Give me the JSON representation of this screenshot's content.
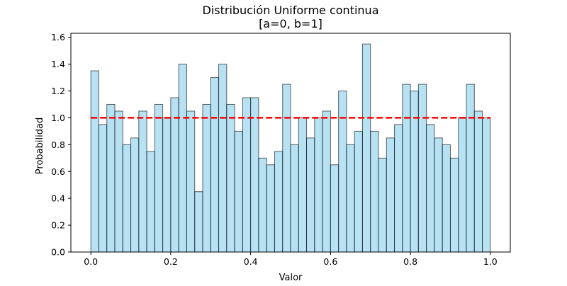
{
  "chart_data": {
    "type": "bar",
    "title": "Distribución Uniforme continua",
    "subtitle": "[a=0, b=1]",
    "xlabel": "Valor",
    "ylabel": "Probabilidad",
    "xlim": [
      -0.05,
      1.05
    ],
    "ylim": [
      0,
      1.63
    ],
    "xticks": [
      0.0,
      0.2,
      0.4,
      0.6,
      0.8,
      1.0
    ],
    "xtick_labels": [
      "0.0",
      "0.2",
      "0.4",
      "0.6",
      "0.8",
      "1.0"
    ],
    "yticks": [
      0.0,
      0.2,
      0.4,
      0.6,
      0.8,
      1.0,
      1.2,
      1.4,
      1.6
    ],
    "ytick_labels": [
      "0.0",
      "0.2",
      "0.4",
      "0.6",
      "0.8",
      "1.0",
      "1.2",
      "1.4",
      "1.6"
    ],
    "grid": false,
    "bin_edges": [
      0,
      0.02,
      0.04,
      0.06,
      0.08,
      0.1,
      0.12,
      0.14,
      0.16,
      0.18,
      0.2,
      0.22,
      0.24,
      0.26,
      0.28,
      0.3,
      0.32,
      0.34,
      0.36,
      0.38,
      0.4,
      0.42,
      0.44,
      0.46,
      0.48,
      0.5,
      0.52,
      0.54,
      0.56,
      0.58,
      0.6,
      0.62,
      0.64,
      0.66,
      0.68,
      0.7,
      0.72,
      0.74,
      0.76,
      0.78,
      0.8,
      0.82,
      0.84,
      0.86,
      0.88,
      0.9,
      0.92,
      0.94,
      0.96,
      0.98,
      1.0
    ],
    "values": [
      1.35,
      0.95,
      1.1,
      1.05,
      0.8,
      0.85,
      1.05,
      0.75,
      1.1,
      1.0,
      1.15,
      1.4,
      1.05,
      0.45,
      1.1,
      1.3,
      1.4,
      1.1,
      0.9,
      1.15,
      1.15,
      0.7,
      0.65,
      0.75,
      1.25,
      0.8,
      1.0,
      0.85,
      1.0,
      1.05,
      0.65,
      1.2,
      0.8,
      0.9,
      1.55,
      0.9,
      0.7,
      0.85,
      0.95,
      1.25,
      1.2,
      1.25,
      0.95,
      0.85,
      0.8,
      0.7,
      1.0,
      1.25,
      1.05,
      1.0
    ],
    "reference_line": {
      "x": [
        0,
        1
      ],
      "y": [
        1,
        1
      ],
      "style": "dashed"
    },
    "colors": {
      "bar_fill": "#87ceeb",
      "bar_edge": "#000000",
      "reference_line": "#ff0000"
    }
  }
}
